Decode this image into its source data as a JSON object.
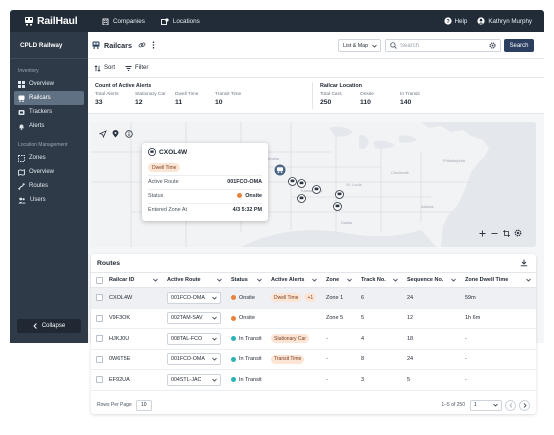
{
  "topbar": {
    "brand": "RailHaul",
    "nav": [
      {
        "label": "Companies",
        "icon": "building-icon"
      },
      {
        "label": "Locations",
        "icon": "locations-icon"
      }
    ],
    "help_label": "Help",
    "user_name": "Kathryn Murphy"
  },
  "sidebar": {
    "org_name": "CPLD Railway",
    "sections": [
      {
        "title": "Inventory",
        "items": [
          {
            "label": "Overview",
            "icon": "grid-icon",
            "active": false
          },
          {
            "label": "Railcars",
            "icon": "railcar-icon",
            "active": true
          },
          {
            "label": "Trackers",
            "icon": "tracker-icon",
            "active": false
          },
          {
            "label": "Alerts",
            "icon": "bell-icon",
            "active": false
          }
        ]
      },
      {
        "title": "Location Management",
        "items": [
          {
            "label": "Zones",
            "icon": "zones-icon",
            "active": false
          },
          {
            "label": "Overview",
            "icon": "map-icon",
            "active": false
          },
          {
            "label": "Routes",
            "icon": "route-icon",
            "active": false
          },
          {
            "label": "Users",
            "icon": "users-icon",
            "active": false
          }
        ]
      }
    ],
    "collapse_label": "Collapse"
  },
  "header": {
    "title": "Railcars",
    "view_select": "List & Map",
    "search_placeholder": "Search",
    "search_button": "Search"
  },
  "toolbar": {
    "sort_label": "Sort",
    "filter_label": "Filter"
  },
  "stats": {
    "alerts": {
      "title": "Count of Active Alerts",
      "items": [
        {
          "label": "Total Alerts",
          "value": "33"
        },
        {
          "label": "Stationary Car",
          "value": "12"
        },
        {
          "label": "Dwell Time",
          "value": "11"
        },
        {
          "label": "Transit Time",
          "value": "10"
        }
      ]
    },
    "location": {
      "title": "Railcar Location",
      "items": [
        {
          "label": "Total Cars",
          "value": "250"
        },
        {
          "label": "Onsite",
          "value": "110"
        },
        {
          "label": "In Transit",
          "value": "140"
        }
      ]
    }
  },
  "popup": {
    "car_id": "CXOL4W",
    "tag": "Dwell Time",
    "rows": [
      {
        "key": "Active Route",
        "value": "001FCO-OMA"
      },
      {
        "key": "Status",
        "value": "Onsite"
      },
      {
        "key": "Entered Zone At",
        "value": "4/3 5:32 PM"
      }
    ]
  },
  "table": {
    "title": "Routes",
    "columns": [
      "Railcar ID",
      "Active Route",
      "Status",
      "Active Alerts",
      "Zone",
      "Track No.",
      "Sequence No.",
      "Zone Dwell Time"
    ],
    "rows": [
      {
        "id": "CXOL4W",
        "route": "001FCO-OMA",
        "status": "Onsite",
        "status_color": "#e8823a",
        "alert": "Dwell Time",
        "alert_extra": "+1",
        "zone": "Zone 1",
        "track": "6",
        "seq": "24",
        "dwell": "59m",
        "selected": true
      },
      {
        "id": "V9F3OK",
        "route": "002TAM-SAV",
        "status": "Onsite",
        "status_color": "#e8823a",
        "alert": "",
        "alert_extra": "",
        "zone": "Zone 5",
        "track": "5",
        "seq": "12",
        "dwell": "1h 6m",
        "selected": false
      },
      {
        "id": "HJKJ0U",
        "route": "008TAL-FCO",
        "status": "In Transit",
        "status_color": "#2bb3b8",
        "alert": "Stationary Car",
        "alert_extra": "",
        "zone": "-",
        "track": "4",
        "seq": "18",
        "dwell": "-",
        "selected": false
      },
      {
        "id": "0W6T5E",
        "route": "001FCO-OMA",
        "status": "In Transit",
        "status_color": "#2bb3b8",
        "alert": "Transit Time",
        "alert_extra": "",
        "zone": "-",
        "track": "8",
        "seq": "24",
        "dwell": "-",
        "selected": false
      },
      {
        "id": "EF92UA",
        "route": "004STL-JAC",
        "status": "In Transit",
        "status_color": "#2bb3b8",
        "alert": "",
        "alert_extra": "",
        "zone": "-",
        "track": "3",
        "seq": "5",
        "dwell": "-",
        "selected": false
      }
    ]
  },
  "footer": {
    "rows_per_page_label": "Rows Per Page",
    "rows_per_page": "10",
    "page_info": "1–5 of 250",
    "page": "1"
  },
  "colors": {
    "topbar": "#222c38",
    "sidebar": "#2e3a47",
    "primary": "#2c3f60",
    "onsite": "#e8823a",
    "in_transit": "#2bb3b8"
  }
}
